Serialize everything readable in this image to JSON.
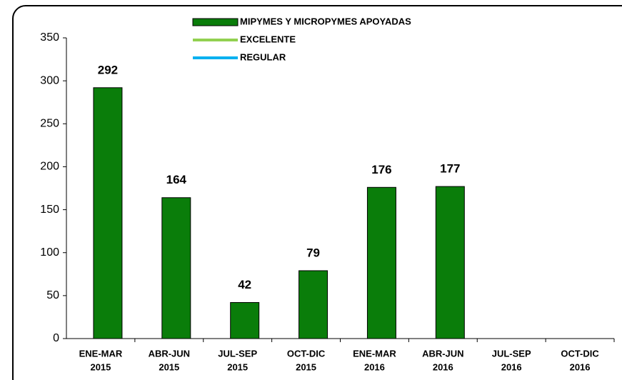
{
  "chart_data": {
    "type": "bar",
    "categories": [
      [
        "ENE-MAR",
        "2015"
      ],
      [
        "ABR-JUN",
        "2015"
      ],
      [
        "JUL-SEP",
        "2015"
      ],
      [
        "OCT-DIC",
        "2015"
      ],
      [
        "ENE-MAR",
        "2016"
      ],
      [
        "ABR-JUN",
        "2016"
      ],
      [
        "JUL-SEP",
        "2016"
      ],
      [
        "OCT-DIC",
        "2016"
      ]
    ],
    "series": [
      {
        "name": "MIPYMES Y MICROPYMES APOYADAS",
        "type": "bar",
        "color": "#0a7d0a",
        "values": [
          292,
          164,
          42,
          79,
          176,
          177,
          null,
          null
        ]
      },
      {
        "name": "EXCELENTE",
        "type": "line",
        "color": "#92d050",
        "values": [
          null,
          null,
          null,
          null,
          null,
          null,
          null,
          null
        ]
      },
      {
        "name": "REGULAR",
        "type": "line",
        "color": "#00b0f0",
        "values": [
          null,
          null,
          null,
          null,
          null,
          null,
          null,
          null
        ]
      }
    ],
    "ylim": [
      0,
      350
    ],
    "yticks": [
      0,
      50,
      100,
      150,
      200,
      250,
      300,
      350
    ],
    "grid": false,
    "legend": "top"
  }
}
